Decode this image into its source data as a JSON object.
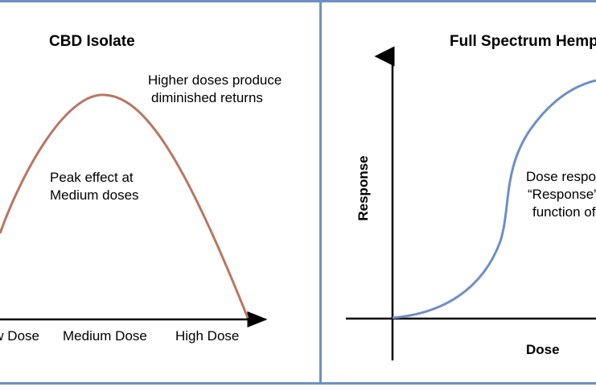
{
  "left_panel": {
    "title": "CBD Isolate",
    "note_top": [
      "Higher doses produce",
      "diminished returns"
    ],
    "note_mid": [
      "Peak effect at",
      "Medium doses"
    ],
    "x_ticks": [
      "Low Dose",
      "Medium Dose",
      "High Dose"
    ],
    "curve_color": "#b87763"
  },
  "right_panel": {
    "title": "Full Spectrum Hemp Extract",
    "y_label": "Response",
    "x_label": "Dose",
    "note": [
      "Dose response is",
      "“Response” is a",
      "function of dose"
    ],
    "curve_color": "#6d8fc6"
  },
  "colors": {
    "frame": "#6d8fc6",
    "axis": "#000000"
  }
}
